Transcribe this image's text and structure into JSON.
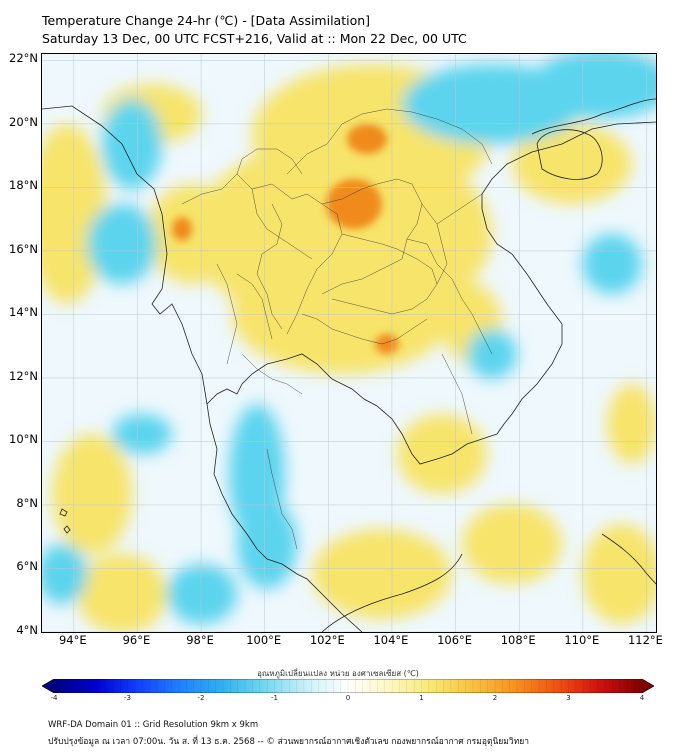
{
  "title": {
    "line1": "Temperature Change 24-hr (℃) - [Data Assimilation]",
    "line2": "Saturday 13 Dec, 00 UTC FCST+216, Valid at :: Mon 22 Dec, 00 UTC"
  },
  "map": {
    "lat_labels": [
      "22°N",
      "20°N",
      "18°N",
      "16°N",
      "14°N",
      "12°N",
      "10°N",
      "8°N",
      "6°N",
      "4°N"
    ],
    "lon_labels": [
      "94°E",
      "96°E",
      "98°E",
      "100°E",
      "102°E",
      "104°E",
      "106°E",
      "108°E",
      "110°E",
      "112°E"
    ],
    "lat_range": [
      4,
      22.2
    ],
    "lon_range": [
      93,
      112.3
    ],
    "background_color": "#eef8fd",
    "warm_color": "#f7e46a",
    "hot_color": "#f08a1e",
    "cool_color": "#5cd4ee"
  },
  "colorbar": {
    "title": "อุณหภูมิเปลี่ยนแปลง หน่วย องศาเซลเซียส (℃)",
    "min": -4,
    "max": 4,
    "ticks": [
      "-4",
      "-3",
      "-2",
      "-1",
      "0",
      "1",
      "2",
      "3",
      "4"
    ],
    "colors": [
      "#000080",
      "#0000d0",
      "#1040ff",
      "#2080ff",
      "#30b0f0",
      "#70d8f0",
      "#c8f0f8",
      "#ffffff",
      "#fff8c0",
      "#f8e870",
      "#f8c040",
      "#f89020",
      "#f05010",
      "#d01010",
      "#800000"
    ]
  },
  "footer": {
    "line1": "WRF-DA Domain 01 :: Grid Resolution 9km x 9km",
    "line2": "ปรับปรุงข้อมูล ณ เวลา 07:00น. วัน ส. ที่ 13 ธ.ค. 2568 -- © ส่วนพยากรณ์อากาศเชิงตัวเลข กองพยากรณ์อากาศ กรมอุตุนิยมวิทยา"
  }
}
